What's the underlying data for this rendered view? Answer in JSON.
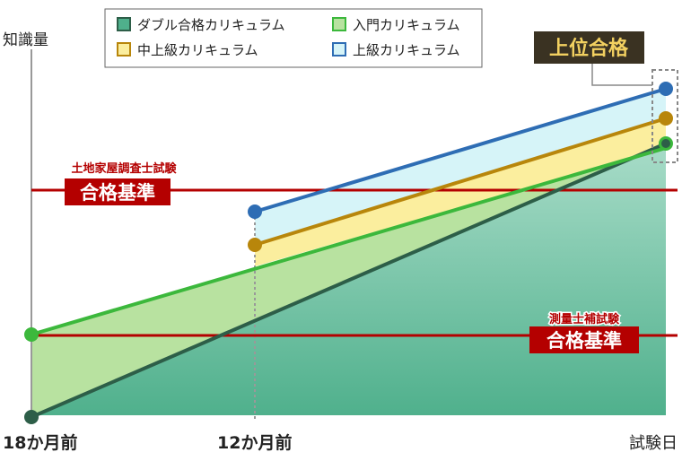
{
  "y_axis_label": "知識量",
  "legend": [
    {
      "label": "ダブル合格カリキュラム"
    },
    {
      "label": "入門カリキュラム"
    },
    {
      "label": "中上級カリキュラム"
    },
    {
      "label": "上級カリキュラム"
    }
  ],
  "x_labels": [
    "18か月前",
    "12か月前",
    "試験日"
  ],
  "annotations": {
    "upper_pass": "上位合格",
    "high_exam": "土地家屋調査士試験",
    "high_pass": "合格基準",
    "low_exam": "測量士補試験",
    "low_pass": "合格基準"
  }
}
